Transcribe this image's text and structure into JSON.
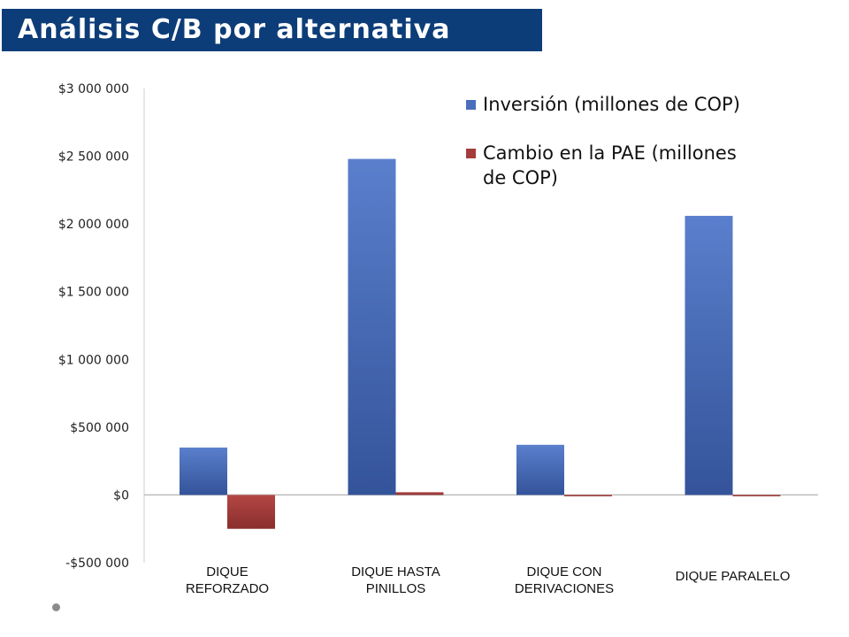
{
  "slide": {
    "title": "Análisis C/B por alternativa"
  },
  "colors": {
    "title_bar": "#0d3d78",
    "series_1": "#4a6ebd",
    "series_2": "#a33c3a"
  },
  "chart_data": {
    "type": "bar",
    "title": "",
    "xlabel": "",
    "ylabel": "",
    "ylim": [
      -500000,
      3000000
    ],
    "yticks": [
      -500000,
      0,
      500000,
      1000000,
      1500000,
      2000000,
      2500000,
      3000000
    ],
    "ytick_labels": [
      "-$500 000",
      "$0",
      "$500 000",
      "$1 000 000",
      "$1 500 000",
      "$2 000 000",
      "$2 500 000",
      "$3 000 000"
    ],
    "categories": [
      [
        "DIQUE",
        "REFORZADO"
      ],
      [
        "DIQUE HASTA",
        "PINILLOS"
      ],
      [
        "DIQUE CON",
        "DERIVACIONES"
      ],
      [
        "DIQUE PARALELO"
      ]
    ],
    "series": [
      {
        "name": "Inversión (millones de COP)",
        "values": [
          350000,
          2480000,
          370000,
          2060000
        ]
      },
      {
        "name": "Cambio en la PAE (millones de COP)",
        "values": [
          -250000,
          20000,
          -10000,
          -10000
        ]
      }
    ],
    "legend_position": "top-right",
    "grid": false
  }
}
